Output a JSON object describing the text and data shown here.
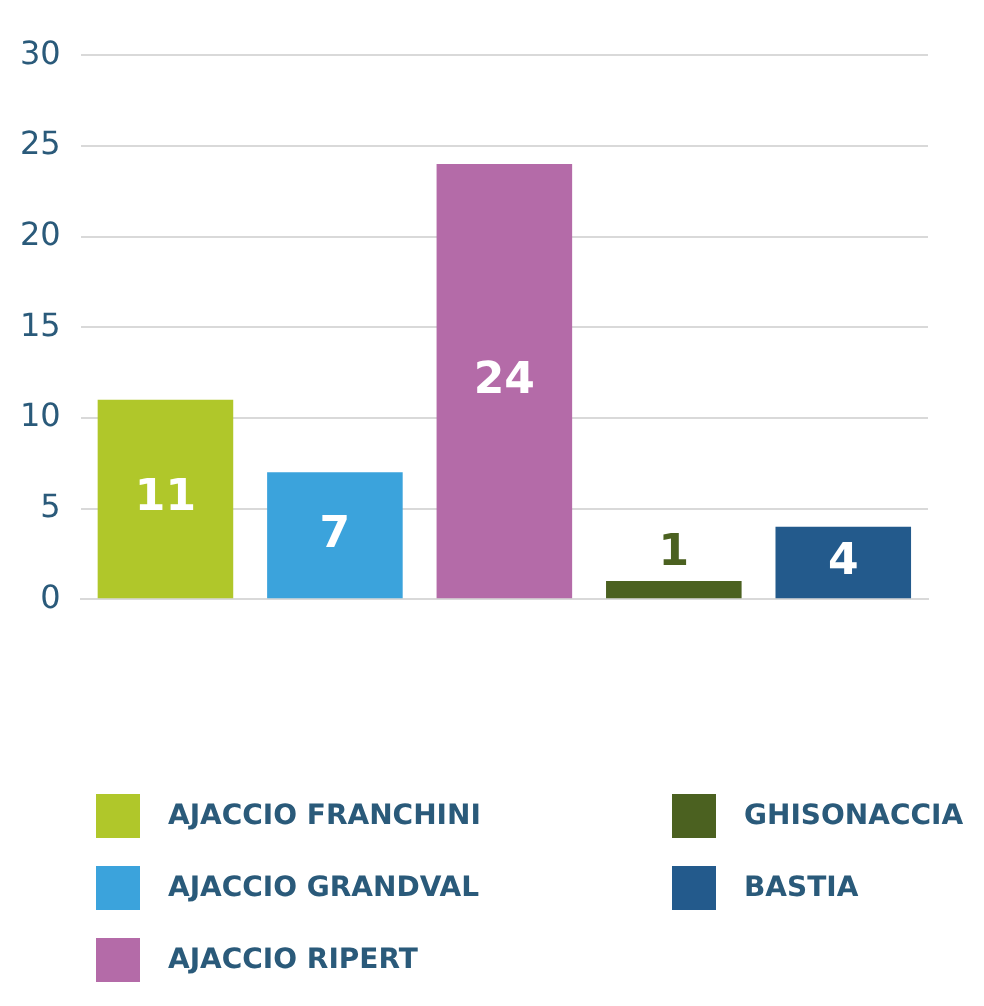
{
  "chart_data": {
    "type": "bar",
    "categories": [
      null,
      null,
      null,
      null,
      null
    ],
    "series": [
      {
        "name": "AJACCIO FRANCHINI",
        "color": "#b0c72a",
        "values": [
          11,
          null,
          null,
          null,
          null
        ]
      },
      {
        "name": "AJACCIO GRANDVAL",
        "color": "#3ba3dc",
        "values": [
          null,
          7,
          null,
          null,
          null
        ]
      },
      {
        "name": "AJACCIO RIPERT",
        "color": "#b46ba8",
        "values": [
          null,
          null,
          24,
          null,
          null
        ]
      },
      {
        "name": "GHISONACCIA",
        "color": "#4b6120",
        "values": [
          null,
          null,
          null,
          1,
          null
        ]
      },
      {
        "name": "BASTIA",
        "color": "#235a8c",
        "values": [
          null,
          null,
          null,
          null,
          4
        ]
      }
    ],
    "ylim": [
      0,
      30
    ],
    "yticks": [
      0,
      5,
      10,
      15,
      20,
      25,
      30
    ],
    "grid": "y",
    "legend": "bottom",
    "data_labels": true
  }
}
